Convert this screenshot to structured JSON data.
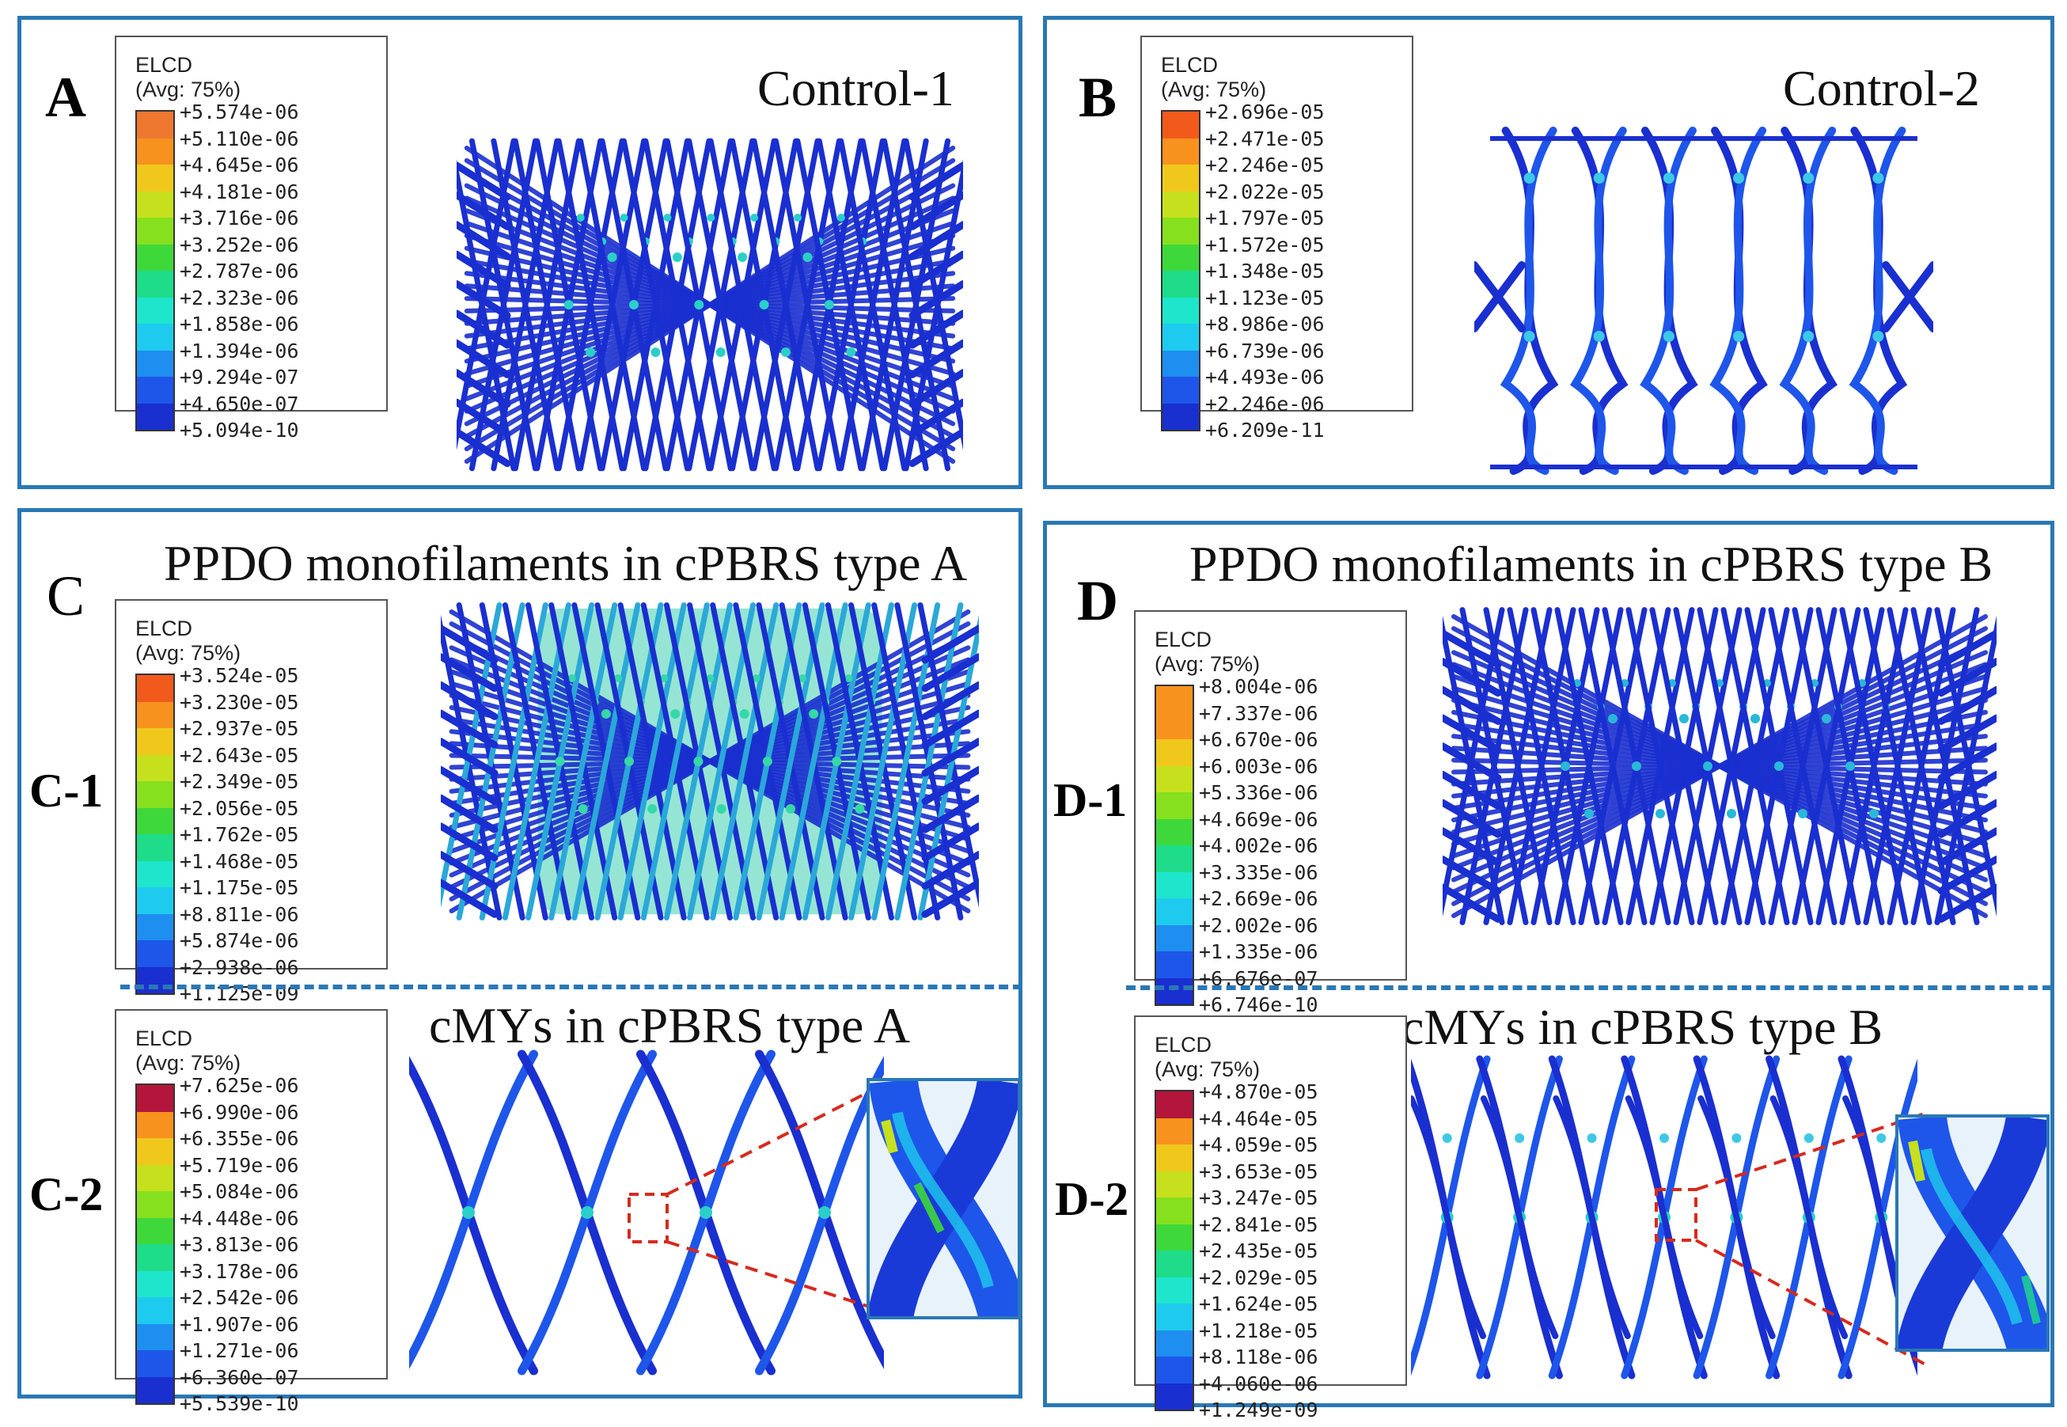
{
  "panels": {
    "A": {
      "label": "A",
      "title": "Control-1"
    },
    "B": {
      "label": "B",
      "title": "Control-2"
    },
    "C": {
      "label": "C",
      "title": "PPDO monofilaments in cPBRS type A",
      "sub1": "C-1",
      "sub2": "C-2",
      "sub2_title": "cMYs in cPBRS type A"
    },
    "D": {
      "label": "D",
      "title": "PPDO monofilaments in cPBRS type B",
      "sub1": "D-1",
      "sub2": "D-2",
      "sub2_title": "cMYs in cPBRS type B"
    }
  },
  "legends": {
    "A": {
      "title": "ELCD",
      "subtitle": "(Avg: 75%)",
      "values": [
        "+5.574e-06",
        "+5.110e-06",
        "+4.645e-06",
        "+4.181e-06",
        "+3.716e-06",
        "+3.252e-06",
        "+2.787e-06",
        "+2.323e-06",
        "+1.858e-06",
        "+1.394e-06",
        "+9.294e-07",
        "+4.650e-07",
        "+5.094e-10"
      ]
    },
    "B": {
      "title": "ELCD",
      "subtitle": "(Avg: 75%)",
      "values": [
        "+2.696e-05",
        "+2.471e-05",
        "+2.246e-05",
        "+2.022e-05",
        "+1.797e-05",
        "+1.572e-05",
        "+1.348e-05",
        "+1.123e-05",
        "+8.986e-06",
        "+6.739e-06",
        "+4.493e-06",
        "+2.246e-06",
        "+6.209e-11"
      ]
    },
    "C1": {
      "title": "ELCD",
      "subtitle": "(Avg: 75%)",
      "values": [
        "+3.524e-05",
        "+3.230e-05",
        "+2.937e-05",
        "+2.643e-05",
        "+2.349e-05",
        "+2.056e-05",
        "+1.762e-05",
        "+1.468e-05",
        "+1.175e-05",
        "+8.811e-06",
        "+5.874e-06",
        "+2.938e-06",
        "+1.125e-09"
      ]
    },
    "C2": {
      "title": "ELCD",
      "subtitle": "(Avg: 75%)",
      "values": [
        "+7.625e-06",
        "+6.990e-06",
        "+6.355e-06",
        "+5.719e-06",
        "+5.084e-06",
        "+4.448e-06",
        "+3.813e-06",
        "+3.178e-06",
        "+2.542e-06",
        "+1.907e-06",
        "+1.271e-06",
        "+6.360e-07",
        "+5.539e-10"
      ]
    },
    "D1": {
      "title": "ELCD",
      "subtitle": "(Avg: 75%)",
      "values": [
        "+8.004e-06",
        "+7.337e-06",
        "+6.670e-06",
        "+6.003e-06",
        "+5.336e-06",
        "+4.669e-06",
        "+4.002e-06",
        "+3.335e-06",
        "+2.669e-06",
        "+2.002e-06",
        "+1.335e-06",
        "+6.676e-07",
        "+6.746e-10"
      ]
    },
    "D2": {
      "title": "ELCD",
      "subtitle": "(Avg: 75%)",
      "values": [
        "+4.870e-05",
        "+4.464e-05",
        "+4.059e-05",
        "+3.653e-05",
        "+3.247e-05",
        "+2.841e-05",
        "+2.435e-05",
        "+2.029e-05",
        "+1.624e-05",
        "+1.218e-05",
        "+8.118e-06",
        "+4.060e-06",
        "+1.249e-09"
      ]
    }
  },
  "colors": {
    "frame": "#2a78b4",
    "zoom_lines": "#d62a1e",
    "stent_base": "#1a2fcf",
    "colormap": [
      "#e8242a",
      "#f25a1c",
      "#f7921e",
      "#f0c81c",
      "#c6e01e",
      "#86e01e",
      "#3ed83a",
      "#1edc8a",
      "#1ee6cc",
      "#1ecbee",
      "#1e8ef0",
      "#1e56ea",
      "#1a2fcf"
    ],
    "colormap_top_A": "#ee7830",
    "colormap_top_C2": "#b4153a",
    "colormap_top_D2": "#b4153a"
  }
}
